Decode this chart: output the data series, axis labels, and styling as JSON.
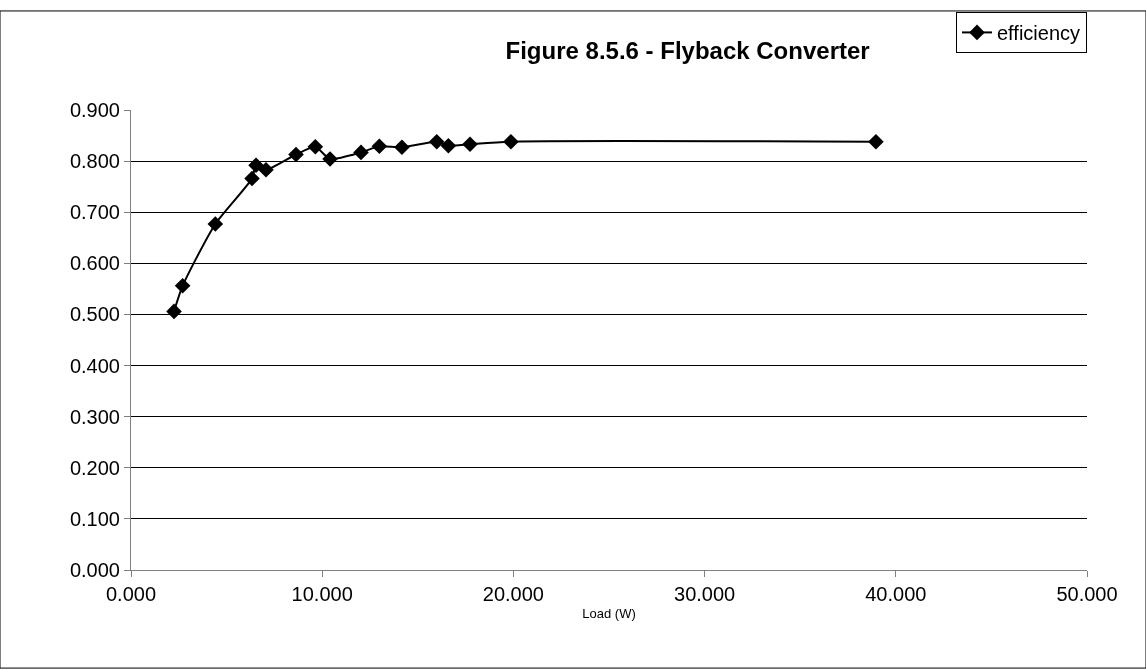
{
  "chart_data": {
    "type": "line",
    "title": "Figure 8.5.6 - Flyback Converter",
    "xlabel": "Load (W)",
    "x": [
      2.25,
      2.7,
      4.41,
      6.33,
      6.54,
      7.06,
      8.63,
      9.64,
      10.41,
      12.03,
      12.99,
      14.17,
      15.99,
      16.6,
      17.73,
      19.87,
      38.96
    ],
    "series": [
      {
        "name": "efficiency",
        "color": "#000000",
        "values": [
          0.506,
          0.556,
          0.677,
          0.766,
          0.792,
          0.783,
          0.813,
          0.828,
          0.804,
          0.817,
          0.829,
          0.827,
          0.838,
          0.83,
          0.833,
          0.838,
          0.838
        ]
      }
    ],
    "xlim": [
      0,
      50
    ],
    "xticks": [
      {
        "value": 0,
        "label": "0.000"
      },
      {
        "value": 10,
        "label": "10.000"
      },
      {
        "value": 20,
        "label": "20.000"
      },
      {
        "value": 30,
        "label": "30.000"
      },
      {
        "value": 40,
        "label": "40.000"
      },
      {
        "value": 50,
        "label": "50.000"
      }
    ],
    "ylim": [
      0,
      0.9
    ],
    "yticks": [
      {
        "value": 0,
        "label": "0.000"
      },
      {
        "value": 0.1,
        "label": "0.100"
      },
      {
        "value": 0.2,
        "label": "0.200"
      },
      {
        "value": 0.3,
        "label": "0.300"
      },
      {
        "value": 0.4,
        "label": "0.400"
      },
      {
        "value": 0.5,
        "label": "0.500"
      },
      {
        "value": 0.6,
        "label": "0.600"
      },
      {
        "value": 0.7,
        "label": "0.700"
      },
      {
        "value": 0.8,
        "label": "0.800"
      },
      {
        "value": 0.9,
        "label": "0.900"
      }
    ],
    "grid": "y",
    "legend": "top right",
    "marker": "diamond",
    "line_style": "solid"
  }
}
